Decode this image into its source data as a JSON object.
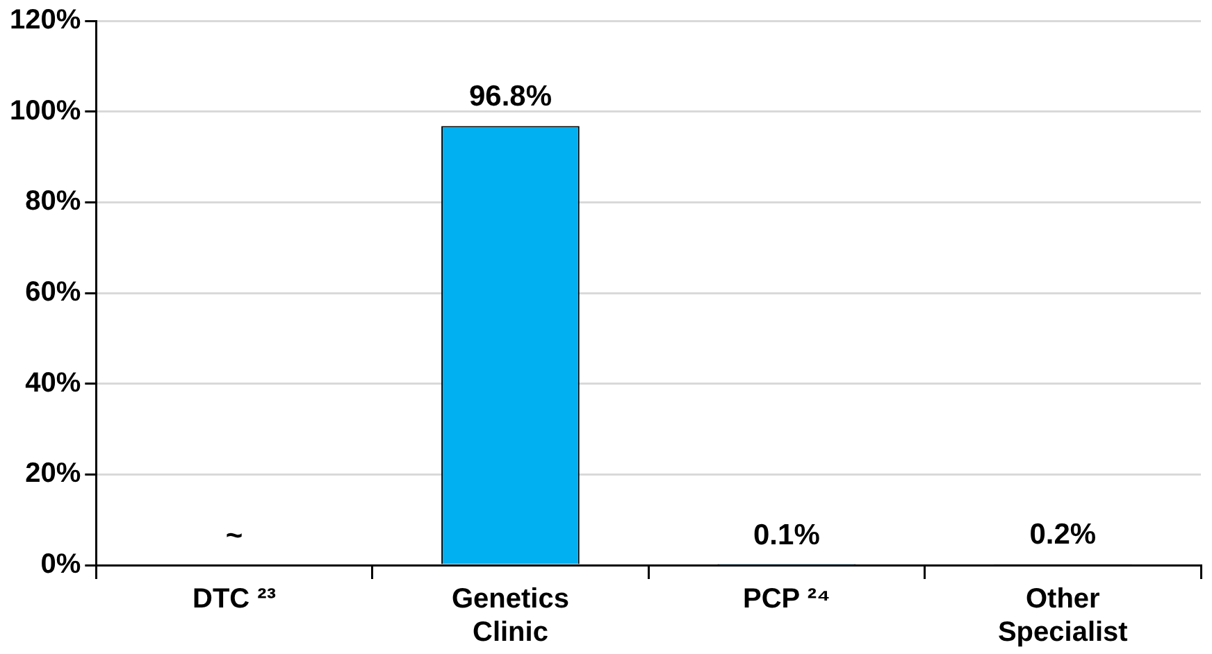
{
  "chart_data": {
    "type": "bar",
    "categories": [
      "DTC ²³",
      "Genetics Clinic",
      "PCP ²⁴",
      "Other Specialist"
    ],
    "values": [
      null,
      96.8,
      0.1,
      0.2
    ],
    "value_labels": [
      "~",
      "96.8%",
      "0.1%",
      "0.2%"
    ],
    "color": "#00b0f0",
    "ylim": [
      0,
      120
    ],
    "yticks": [
      {
        "value": 0,
        "label": "0%"
      },
      {
        "value": 20,
        "label": "20%"
      },
      {
        "value": 40,
        "label": "40%"
      },
      {
        "value": 60,
        "label": "60%"
      },
      {
        "value": 80,
        "label": "80%"
      },
      {
        "value": 100,
        "label": "100%"
      },
      {
        "value": 120,
        "label": "120%"
      }
    ],
    "grid": "y",
    "legend": false
  }
}
